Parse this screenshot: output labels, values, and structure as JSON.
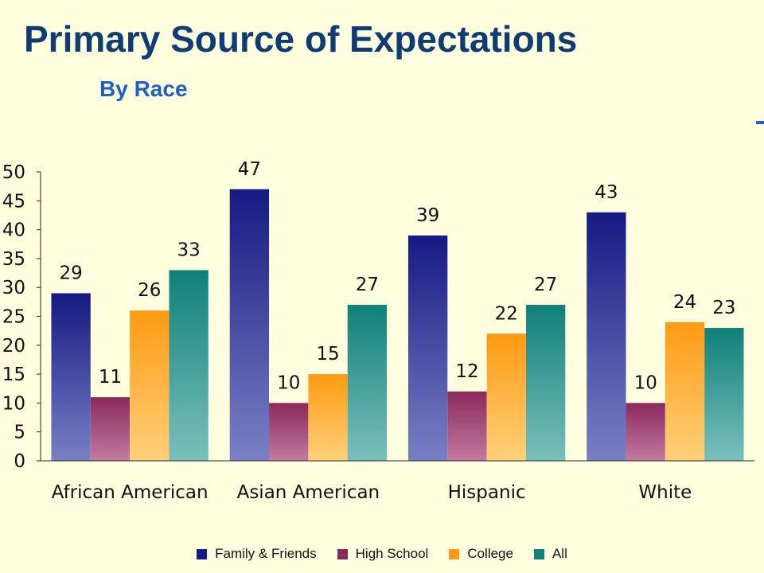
{
  "title": "Primary Source of Expectations",
  "subtitle": "By Race",
  "chart_data": {
    "type": "bar",
    "categories": [
      "African American",
      "Asian American",
      "Hispanic",
      "White"
    ],
    "series": [
      {
        "name": "Family & Friends",
        "values": [
          29,
          47,
          39,
          43
        ],
        "color": "#151a82"
      },
      {
        "name": "High School",
        "values": [
          11,
          10,
          12,
          10
        ],
        "color": "#8b2a5c"
      },
      {
        "name": "College",
        "values": [
          26,
          15,
          22,
          24
        ],
        "color": "#ff9a12"
      },
      {
        "name": "All",
        "values": [
          33,
          27,
          27,
          23
        ],
        "color": "#108079"
      }
    ],
    "ylim": [
      0,
      50
    ],
    "yticks": [
      0,
      5,
      10,
      15,
      20,
      25,
      30,
      35,
      40,
      45,
      50
    ],
    "xlabel": "",
    "ylabel": "",
    "grid": false,
    "legend_position": "bottom"
  }
}
